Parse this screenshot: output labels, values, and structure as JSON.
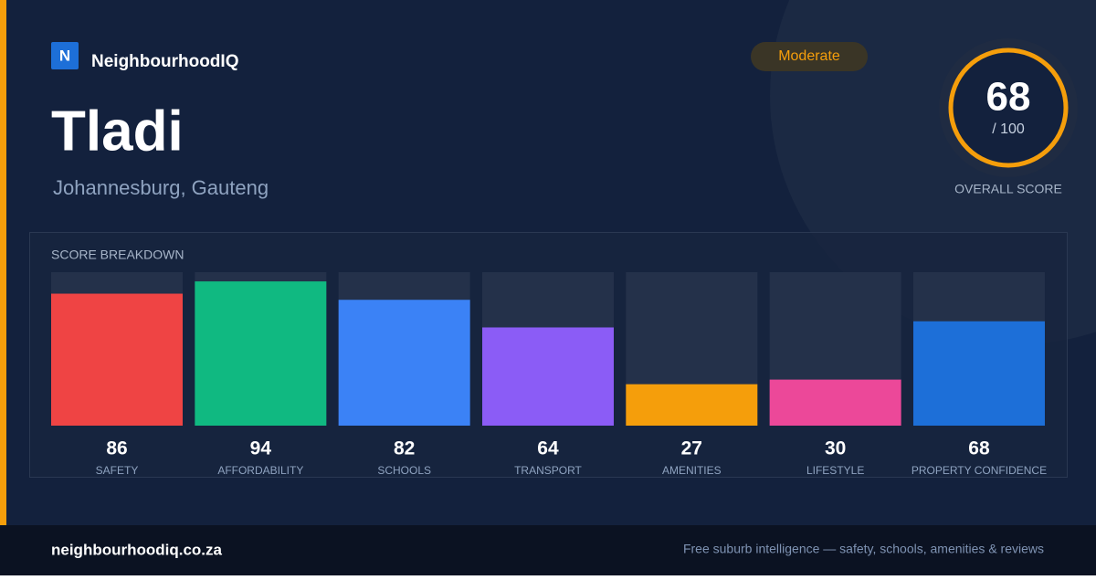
{
  "brand": {
    "logo": "N",
    "name": "NeighbourhoodIQ"
  },
  "suburb": {
    "name": "Tladi",
    "location": "Johannesburg, Gauteng"
  },
  "badge": "Moderate",
  "overall": {
    "score": "68",
    "out_of": "/ 100",
    "label": "OVERALL SCORE"
  },
  "chart_data": {
    "type": "bar",
    "title": "SCORE BREAKDOWN",
    "categories": [
      "SAFETY",
      "AFFORDABILITY",
      "SCHOOLS",
      "TRANSPORT",
      "AMENITIES",
      "LIFESTYLE",
      "PROPERTY CONFIDENCE"
    ],
    "values": [
      86,
      94,
      82,
      64,
      27,
      30,
      68
    ],
    "colors": [
      "#ef4444",
      "#10b981",
      "#3b82f6",
      "#8b5cf6",
      "#f59e0b",
      "#ec4899",
      "#1d6fd8"
    ],
    "ylim": [
      0,
      100
    ]
  },
  "footer": {
    "site": "neighbourhoodiq.co.za",
    "tagline": "Free suburb intelligence — safety, schools, amenities & reviews"
  }
}
